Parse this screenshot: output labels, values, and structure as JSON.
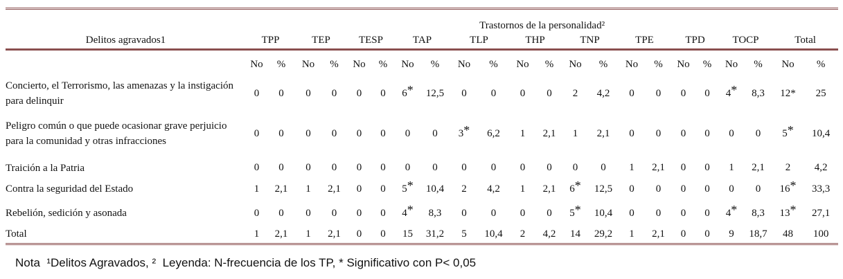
{
  "table": {
    "super_header": "Trastornos de la personalidad²",
    "row_header": "Delitos agravados1",
    "groups": [
      "TPP",
      "TEP",
      "TESP",
      "TAP",
      "TLP",
      "THP",
      "TNP",
      "TPE",
      "TPD",
      "TOCP",
      "Total"
    ],
    "sub_headers": [
      "No",
      "%"
    ],
    "rows": [
      {
        "label": "Concierto, el Terrorismo, las amenazas y la instigación para delinquir",
        "cells": [
          "0",
          "0",
          "0",
          "0",
          "0",
          "0",
          {
            "text": "6",
            "sup": "*"
          },
          "12,5",
          "0",
          "0",
          "0",
          "0",
          "2",
          "4,2",
          "0",
          "0",
          "0",
          "0",
          {
            "text": "4",
            "sup": "*"
          },
          "8,3",
          "12*",
          "25"
        ]
      },
      {
        "label": "Peligro común o que puede ocasionar grave perjuicio para la comunidad y otras infracciones",
        "cells": [
          "0",
          "0",
          "0",
          "0",
          "0",
          "0",
          "0",
          "0",
          {
            "text": "3",
            "sup": "*"
          },
          "6,2",
          "1",
          "2,1",
          "1",
          "2,1",
          "0",
          "0",
          "0",
          "0",
          "0",
          "0",
          {
            "text": "5",
            "sup": "*"
          },
          "10,4"
        ]
      },
      {
        "label": "Traición a la Patria",
        "cells": [
          "0",
          "0",
          "0",
          "0",
          "0",
          "0",
          "0",
          "0",
          "0",
          "0",
          "0",
          "0",
          "0",
          "0",
          "1",
          "2,1",
          "0",
          "0",
          "1",
          "2,1",
          "2",
          "4,2"
        ]
      },
      {
        "label": "Contra la seguridad del Estado",
        "cells": [
          "1",
          "2,1",
          "1",
          "2,1",
          "0",
          "0",
          {
            "text": "5",
            "sup": "*"
          },
          "10,4",
          "2",
          "4,2",
          "1",
          "2,1",
          {
            "text": "6",
            "sup": "*"
          },
          "12,5",
          "0",
          "0",
          "0",
          "0",
          "0",
          "0",
          {
            "text": "16",
            "sup": "*"
          },
          "33,3"
        ]
      },
      {
        "label": "Rebelión, sedición y asonada",
        "cells": [
          "0",
          "0",
          "0",
          "0",
          "0",
          "0",
          {
            "text": "4",
            "sup": "*"
          },
          "8,3",
          "0",
          "0",
          "0",
          "0",
          {
            "text": "5",
            "sup": "*"
          },
          "10,4",
          "0",
          "0",
          "0",
          "0",
          {
            "text": "4",
            "sup": "*"
          },
          "8,3",
          {
            "text": "13",
            "sup": "*"
          },
          "27,1"
        ]
      },
      {
        "label": "Total",
        "cells": [
          "1",
          "2,1",
          "1",
          "2,1",
          "0",
          "0",
          "15",
          "31,2",
          "5",
          "10,4",
          "2",
          "4,2",
          "14",
          "29,2",
          "1",
          "2,1",
          "0",
          "0",
          "9",
          "18,7",
          "48",
          "100"
        ]
      }
    ],
    "note": "Nota  ¹Delitos Agravados, ²  Leyenda: N-frecuencia de los TP, * Significativo con P< 0,05"
  }
}
